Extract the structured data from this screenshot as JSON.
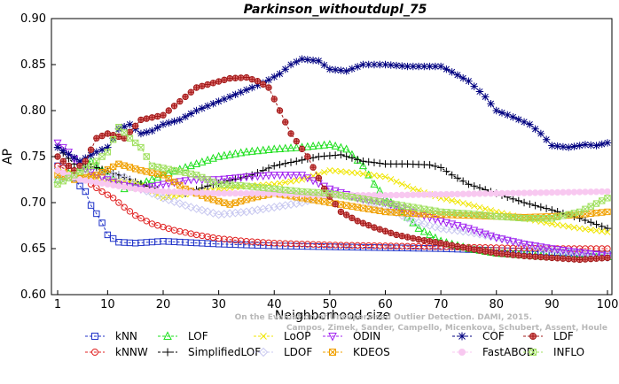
{
  "chart_data": {
    "type": "line",
    "title": "Parkinson_withoutdupl_75",
    "xlabel": "Neighborhood size",
    "ylabel": "AP",
    "xlim": [
      1,
      100
    ],
    "ylim": [
      0.6,
      0.9
    ],
    "xticks": [
      1,
      10,
      20,
      30,
      40,
      50,
      60,
      70,
      80,
      90,
      100
    ],
    "yticks": [
      0.6,
      0.65,
      0.7,
      0.75,
      0.8,
      0.85,
      0.9
    ],
    "ytick_labels": [
      "0.60",
      "0.65",
      "0.70",
      "0.75",
      "0.80",
      "0.85",
      "0.90"
    ],
    "grid": false,
    "legend_placement": "bottom",
    "watermark": [
      "Campos, Zimek, Sander, Campello, Micenkova, Schubert, Assent, Houle",
      "On the Evaluation of Unsupervised Outlier Detection. DAMI, 2015."
    ],
    "series": [
      {
        "name": "kNN",
        "color": "#1f32c8",
        "marker": "square",
        "points": [
          [
            1,
            0.74
          ],
          [
            3,
            0.735
          ],
          [
            5,
            0.718
          ],
          [
            6,
            0.712
          ],
          [
            7,
            0.697
          ],
          [
            8,
            0.688
          ],
          [
            9,
            0.678
          ],
          [
            10,
            0.665
          ],
          [
            12,
            0.657
          ],
          [
            15,
            0.656
          ],
          [
            20,
            0.658
          ],
          [
            30,
            0.655
          ],
          [
            40,
            0.653
          ],
          [
            50,
            0.652
          ],
          [
            60,
            0.651
          ],
          [
            70,
            0.65
          ],
          [
            80,
            0.648
          ],
          [
            90,
            0.646
          ],
          [
            100,
            0.644
          ]
        ]
      },
      {
        "name": "kNNW",
        "color": "#e02020",
        "marker": "circle",
        "points": [
          [
            1,
            0.74
          ],
          [
            3,
            0.735
          ],
          [
            5,
            0.73
          ],
          [
            7,
            0.72
          ],
          [
            9,
            0.712
          ],
          [
            11,
            0.705
          ],
          [
            13,
            0.695
          ],
          [
            15,
            0.686
          ],
          [
            18,
            0.677
          ],
          [
            22,
            0.67
          ],
          [
            26,
            0.665
          ],
          [
            30,
            0.661
          ],
          [
            35,
            0.658
          ],
          [
            40,
            0.656
          ],
          [
            50,
            0.654
          ],
          [
            60,
            0.653
          ],
          [
            70,
            0.652
          ],
          [
            80,
            0.651
          ],
          [
            90,
            0.65
          ],
          [
            100,
            0.65
          ]
        ]
      },
      {
        "name": "LOF",
        "color": "#1ee01e",
        "marker": "triangle-up",
        "points": [
          [
            1,
            0.725
          ],
          [
            4,
            0.735
          ],
          [
            7,
            0.745
          ],
          [
            10,
            0.73
          ],
          [
            13,
            0.715
          ],
          [
            16,
            0.72
          ],
          [
            20,
            0.73
          ],
          [
            25,
            0.74
          ],
          [
            30,
            0.75
          ],
          [
            35,
            0.755
          ],
          [
            40,
            0.758
          ],
          [
            45,
            0.76
          ],
          [
            50,
            0.763
          ],
          [
            53,
            0.758
          ],
          [
            56,
            0.74
          ],
          [
            58,
            0.72
          ],
          [
            60,
            0.705
          ],
          [
            63,
            0.69
          ],
          [
            66,
            0.672
          ],
          [
            70,
            0.658
          ],
          [
            75,
            0.65
          ],
          [
            80,
            0.645
          ],
          [
            90,
            0.641
          ],
          [
            100,
            0.641
          ]
        ]
      },
      {
        "name": "SimplifiedLOF",
        "color": "#000000",
        "marker": "plus",
        "points": [
          [
            1,
            0.76
          ],
          [
            4,
            0.742
          ],
          [
            8,
            0.738
          ],
          [
            12,
            0.73
          ],
          [
            16,
            0.72
          ],
          [
            20,
            0.712
          ],
          [
            24,
            0.71
          ],
          [
            28,
            0.718
          ],
          [
            32,
            0.724
          ],
          [
            36,
            0.73
          ],
          [
            40,
            0.74
          ],
          [
            44,
            0.745
          ],
          [
            48,
            0.75
          ],
          [
            52,
            0.752
          ],
          [
            56,
            0.745
          ],
          [
            60,
            0.742
          ],
          [
            64,
            0.742
          ],
          [
            68,
            0.741
          ],
          [
            70,
            0.738
          ],
          [
            72,
            0.73
          ],
          [
            75,
            0.72
          ],
          [
            80,
            0.71
          ],
          [
            85,
            0.7
          ],
          [
            90,
            0.692
          ],
          [
            95,
            0.683
          ],
          [
            100,
            0.672
          ]
        ]
      },
      {
        "name": "LoOP",
        "color": "#f0e600",
        "marker": "x",
        "points": [
          [
            1,
            0.735
          ],
          [
            5,
            0.73
          ],
          [
            10,
            0.725
          ],
          [
            15,
            0.722
          ],
          [
            20,
            0.705
          ],
          [
            25,
            0.71
          ],
          [
            30,
            0.715
          ],
          [
            35,
            0.718
          ],
          [
            40,
            0.72
          ],
          [
            45,
            0.725
          ],
          [
            50,
            0.735
          ],
          [
            55,
            0.732
          ],
          [
            60,
            0.728
          ],
          [
            65,
            0.715
          ],
          [
            70,
            0.705
          ],
          [
            75,
            0.698
          ],
          [
            80,
            0.69
          ],
          [
            85,
            0.683
          ],
          [
            90,
            0.677
          ],
          [
            95,
            0.672
          ],
          [
            100,
            0.668
          ]
        ]
      },
      {
        "name": "LDOF",
        "color": "#c8c8f0",
        "marker": "diamond",
        "points": [
          [
            1,
            0.725
          ],
          [
            5,
            0.73
          ],
          [
            10,
            0.73
          ],
          [
            13,
            0.728
          ],
          [
            16,
            0.715
          ],
          [
            20,
            0.705
          ],
          [
            25,
            0.695
          ],
          [
            30,
            0.687
          ],
          [
            35,
            0.69
          ],
          [
            40,
            0.695
          ],
          [
            45,
            0.7
          ],
          [
            50,
            0.71
          ],
          [
            55,
            0.705
          ],
          [
            60,
            0.695
          ],
          [
            65,
            0.68
          ],
          [
            70,
            0.672
          ],
          [
            75,
            0.668
          ],
          [
            80,
            0.662
          ],
          [
            85,
            0.655
          ],
          [
            90,
            0.648
          ],
          [
            95,
            0.645
          ],
          [
            100,
            0.64
          ]
        ]
      },
      {
        "name": "ODIN",
        "color": "#a020f0",
        "marker": "triangle-down",
        "points": [
          [
            1,
            0.765
          ],
          [
            3,
            0.755
          ],
          [
            5,
            0.74
          ],
          [
            8,
            0.73
          ],
          [
            12,
            0.72
          ],
          [
            16,
            0.715
          ],
          [
            20,
            0.72
          ],
          [
            25,
            0.725
          ],
          [
            30,
            0.725
          ],
          [
            35,
            0.728
          ],
          [
            40,
            0.73
          ],
          [
            45,
            0.73
          ],
          [
            50,
            0.715
          ],
          [
            55,
            0.705
          ],
          [
            60,
            0.7
          ],
          [
            65,
            0.69
          ],
          [
            70,
            0.68
          ],
          [
            75,
            0.672
          ],
          [
            80,
            0.662
          ],
          [
            85,
            0.655
          ],
          [
            90,
            0.65
          ],
          [
            95,
            0.646
          ],
          [
            100,
            0.642
          ]
        ]
      },
      {
        "name": "KDEOS",
        "color": "#f0a000",
        "marker": "square-x",
        "points": [
          [
            1,
            0.73
          ],
          [
            4,
            0.725
          ],
          [
            8,
            0.73
          ],
          [
            12,
            0.742
          ],
          [
            16,
            0.735
          ],
          [
            20,
            0.73
          ],
          [
            24,
            0.715
          ],
          [
            28,
            0.705
          ],
          [
            32,
            0.698
          ],
          [
            36,
            0.705
          ],
          [
            40,
            0.71
          ],
          [
            45,
            0.705
          ],
          [
            50,
            0.7
          ],
          [
            55,
            0.695
          ],
          [
            60,
            0.69
          ],
          [
            65,
            0.688
          ],
          [
            70,
            0.687
          ],
          [
            75,
            0.686
          ],
          [
            80,
            0.685
          ],
          [
            85,
            0.684
          ],
          [
            90,
            0.685
          ],
          [
            95,
            0.687
          ],
          [
            100,
            0.69
          ]
        ]
      },
      {
        "name": "COF",
        "color": "#000080",
        "marker": "asterisk",
        "points": [
          [
            1,
            0.76
          ],
          [
            5,
            0.745
          ],
          [
            8,
            0.755
          ],
          [
            10,
            0.76
          ],
          [
            12,
            0.78
          ],
          [
            14,
            0.785
          ],
          [
            16,
            0.775
          ],
          [
            18,
            0.778
          ],
          [
            20,
            0.785
          ],
          [
            23,
            0.79
          ],
          [
            26,
            0.8
          ],
          [
            30,
            0.81
          ],
          [
            34,
            0.82
          ],
          [
            38,
            0.83
          ],
          [
            41,
            0.84
          ],
          [
            43,
            0.85
          ],
          [
            45,
            0.856
          ],
          [
            48,
            0.854
          ],
          [
            50,
            0.845
          ],
          [
            53,
            0.843
          ],
          [
            56,
            0.85
          ],
          [
            60,
            0.85
          ],
          [
            64,
            0.848
          ],
          [
            67,
            0.848
          ],
          [
            70,
            0.848
          ],
          [
            72,
            0.842
          ],
          [
            75,
            0.832
          ],
          [
            78,
            0.815
          ],
          [
            80,
            0.8
          ],
          [
            83,
            0.793
          ],
          [
            86,
            0.785
          ],
          [
            88,
            0.775
          ],
          [
            90,
            0.762
          ],
          [
            93,
            0.76
          ],
          [
            96,
            0.763
          ],
          [
            98,
            0.762
          ],
          [
            100,
            0.765
          ]
        ]
      },
      {
        "name": "FastABOD",
        "color": "#f8c8f0",
        "marker": "circle-filled",
        "points": [
          [
            1,
            0.735
          ],
          [
            5,
            0.725
          ],
          [
            10,
            0.72
          ],
          [
            15,
            0.715
          ],
          [
            20,
            0.712
          ],
          [
            30,
            0.71
          ],
          [
            40,
            0.71
          ],
          [
            50,
            0.708
          ],
          [
            60,
            0.708
          ],
          [
            70,
            0.709
          ],
          [
            80,
            0.71
          ],
          [
            90,
            0.711
          ],
          [
            100,
            0.712
          ]
        ]
      },
      {
        "name": "LDF",
        "color": "#a01818",
        "marker": "circle-plus",
        "points": [
          [
            1,
            0.75
          ],
          [
            4,
            0.735
          ],
          [
            6,
            0.745
          ],
          [
            8,
            0.77
          ],
          [
            10,
            0.775
          ],
          [
            13,
            0.77
          ],
          [
            16,
            0.79
          ],
          [
            20,
            0.795
          ],
          [
            23,
            0.81
          ],
          [
            26,
            0.825
          ],
          [
            29,
            0.83
          ],
          [
            32,
            0.835
          ],
          [
            35,
            0.836
          ],
          [
            37,
            0.832
          ],
          [
            39,
            0.825
          ],
          [
            41,
            0.8
          ],
          [
            43,
            0.775
          ],
          [
            46,
            0.75
          ],
          [
            49,
            0.715
          ],
          [
            52,
            0.69
          ],
          [
            55,
            0.68
          ],
          [
            58,
            0.673
          ],
          [
            62,
            0.665
          ],
          [
            66,
            0.66
          ],
          [
            70,
            0.656
          ],
          [
            75,
            0.65
          ],
          [
            80,
            0.645
          ],
          [
            85,
            0.642
          ],
          [
            90,
            0.64
          ],
          [
            95,
            0.638
          ],
          [
            100,
            0.64
          ]
        ]
      },
      {
        "name": "INFLO",
        "color": "#a0e060",
        "marker": "hourglass",
        "points": [
          [
            1,
            0.72
          ],
          [
            4,
            0.73
          ],
          [
            7,
            0.74
          ],
          [
            10,
            0.755
          ],
          [
            12,
            0.782
          ],
          [
            14,
            0.77
          ],
          [
            16,
            0.76
          ],
          [
            18,
            0.74
          ],
          [
            22,
            0.735
          ],
          [
            26,
            0.73
          ],
          [
            30,
            0.72
          ],
          [
            35,
            0.718
          ],
          [
            40,
            0.715
          ],
          [
            45,
            0.712
          ],
          [
            50,
            0.71
          ],
          [
            55,
            0.705
          ],
          [
            60,
            0.7
          ],
          [
            65,
            0.695
          ],
          [
            70,
            0.69
          ],
          [
            75,
            0.688
          ],
          [
            80,
            0.685
          ],
          [
            85,
            0.683
          ],
          [
            90,
            0.683
          ],
          [
            95,
            0.69
          ],
          [
            100,
            0.705
          ]
        ]
      }
    ]
  }
}
